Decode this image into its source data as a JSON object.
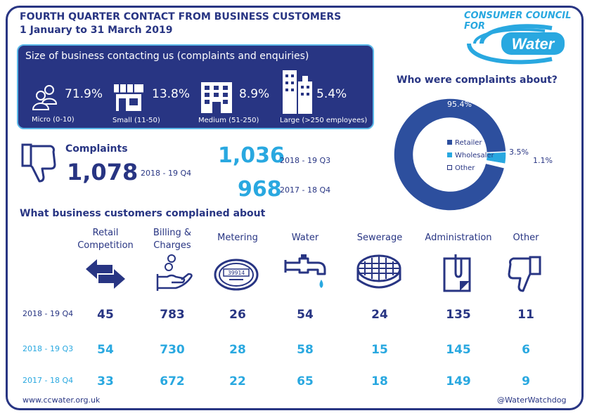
{
  "header": {
    "title_line1": "FOURTH QUARTER CONTACT FROM BUSINESS CUSTOMERS",
    "title_line2": "1 January to 31 March 2019"
  },
  "logo": {
    "top_text": "CONSUMER COUNCIL FOR",
    "word": "Water"
  },
  "size_box": {
    "title": "Size of business contacting us (complaints and enquiries)",
    "items": [
      {
        "pct": "71.9%",
        "label": "Micro (0-10)",
        "icon": "people-icon"
      },
      {
        "pct": "13.8%",
        "label": "Small (11-50)",
        "icon": "shop-icon"
      },
      {
        "pct": "8.9%",
        "label": "Medium (51-250)",
        "icon": "building-icon"
      },
      {
        "pct": "5.4%",
        "label": "Large (>250 employees)",
        "icon": "skyscraper-icon"
      }
    ]
  },
  "complaints": {
    "label": "Complaints",
    "current_value": "1,078",
    "current_period": "2018 - 19 Q4",
    "q3_value": "1,036",
    "q3_period": "2018 - 19 Q3",
    "prev_value": "968",
    "prev_period": "2017 - 18 Q4"
  },
  "who": {
    "title": "Who were complaints about?",
    "legend": [
      "Retailer",
      "Wholesaler",
      "Other"
    ],
    "labels": [
      "95.4%",
      "3.5%",
      "1.1%"
    ]
  },
  "chart_data": {
    "type": "pie",
    "categories": [
      "Retailer",
      "Wholesaler",
      "Other"
    ],
    "values": [
      95.4,
      3.5,
      1.1
    ],
    "title": "Who were complaints about?",
    "colors": [
      "#2d4f9e",
      "#29a8e0",
      "#ffffff"
    ]
  },
  "what": {
    "title": "What business customers complained about",
    "categories": [
      {
        "line1": "Retail",
        "line2": "Competition",
        "icon": "arrows-exchange-icon"
      },
      {
        "line1": "Billing &",
        "line2": "Charges",
        "icon": "hand-coins-icon"
      },
      {
        "line1": "Metering",
        "line2": "",
        "icon": "meter-icon"
      },
      {
        "line1": "Water",
        "line2": "",
        "icon": "tap-icon"
      },
      {
        "line1": "Sewerage",
        "line2": "",
        "icon": "drain-cover-icon"
      },
      {
        "line1": "Administration",
        "line2": "",
        "icon": "clipboard-icon"
      },
      {
        "line1": "Other",
        "line2": "",
        "icon": "thumbs-down-icon"
      }
    ],
    "rows": [
      {
        "label": "2018 - 19 Q4",
        "values": [
          "45",
          "783",
          "26",
          "54",
          "24",
          "135",
          "11"
        ]
      },
      {
        "label": "2018 - 19 Q3",
        "values": [
          "54",
          "730",
          "28",
          "58",
          "15",
          "145",
          "6"
        ]
      },
      {
        "label": "2017 - 18 Q4",
        "values": [
          "33",
          "672",
          "22",
          "65",
          "18",
          "149",
          "9"
        ]
      }
    ]
  },
  "meter_reading": "39914",
  "footer": {
    "website": "www.ccwater.org.uk",
    "twitter": "@WaterWatchdog"
  },
  "colors": {
    "navy": "#283583",
    "light_blue": "#29a8e0",
    "donut_dark": "#2d4f9e"
  }
}
